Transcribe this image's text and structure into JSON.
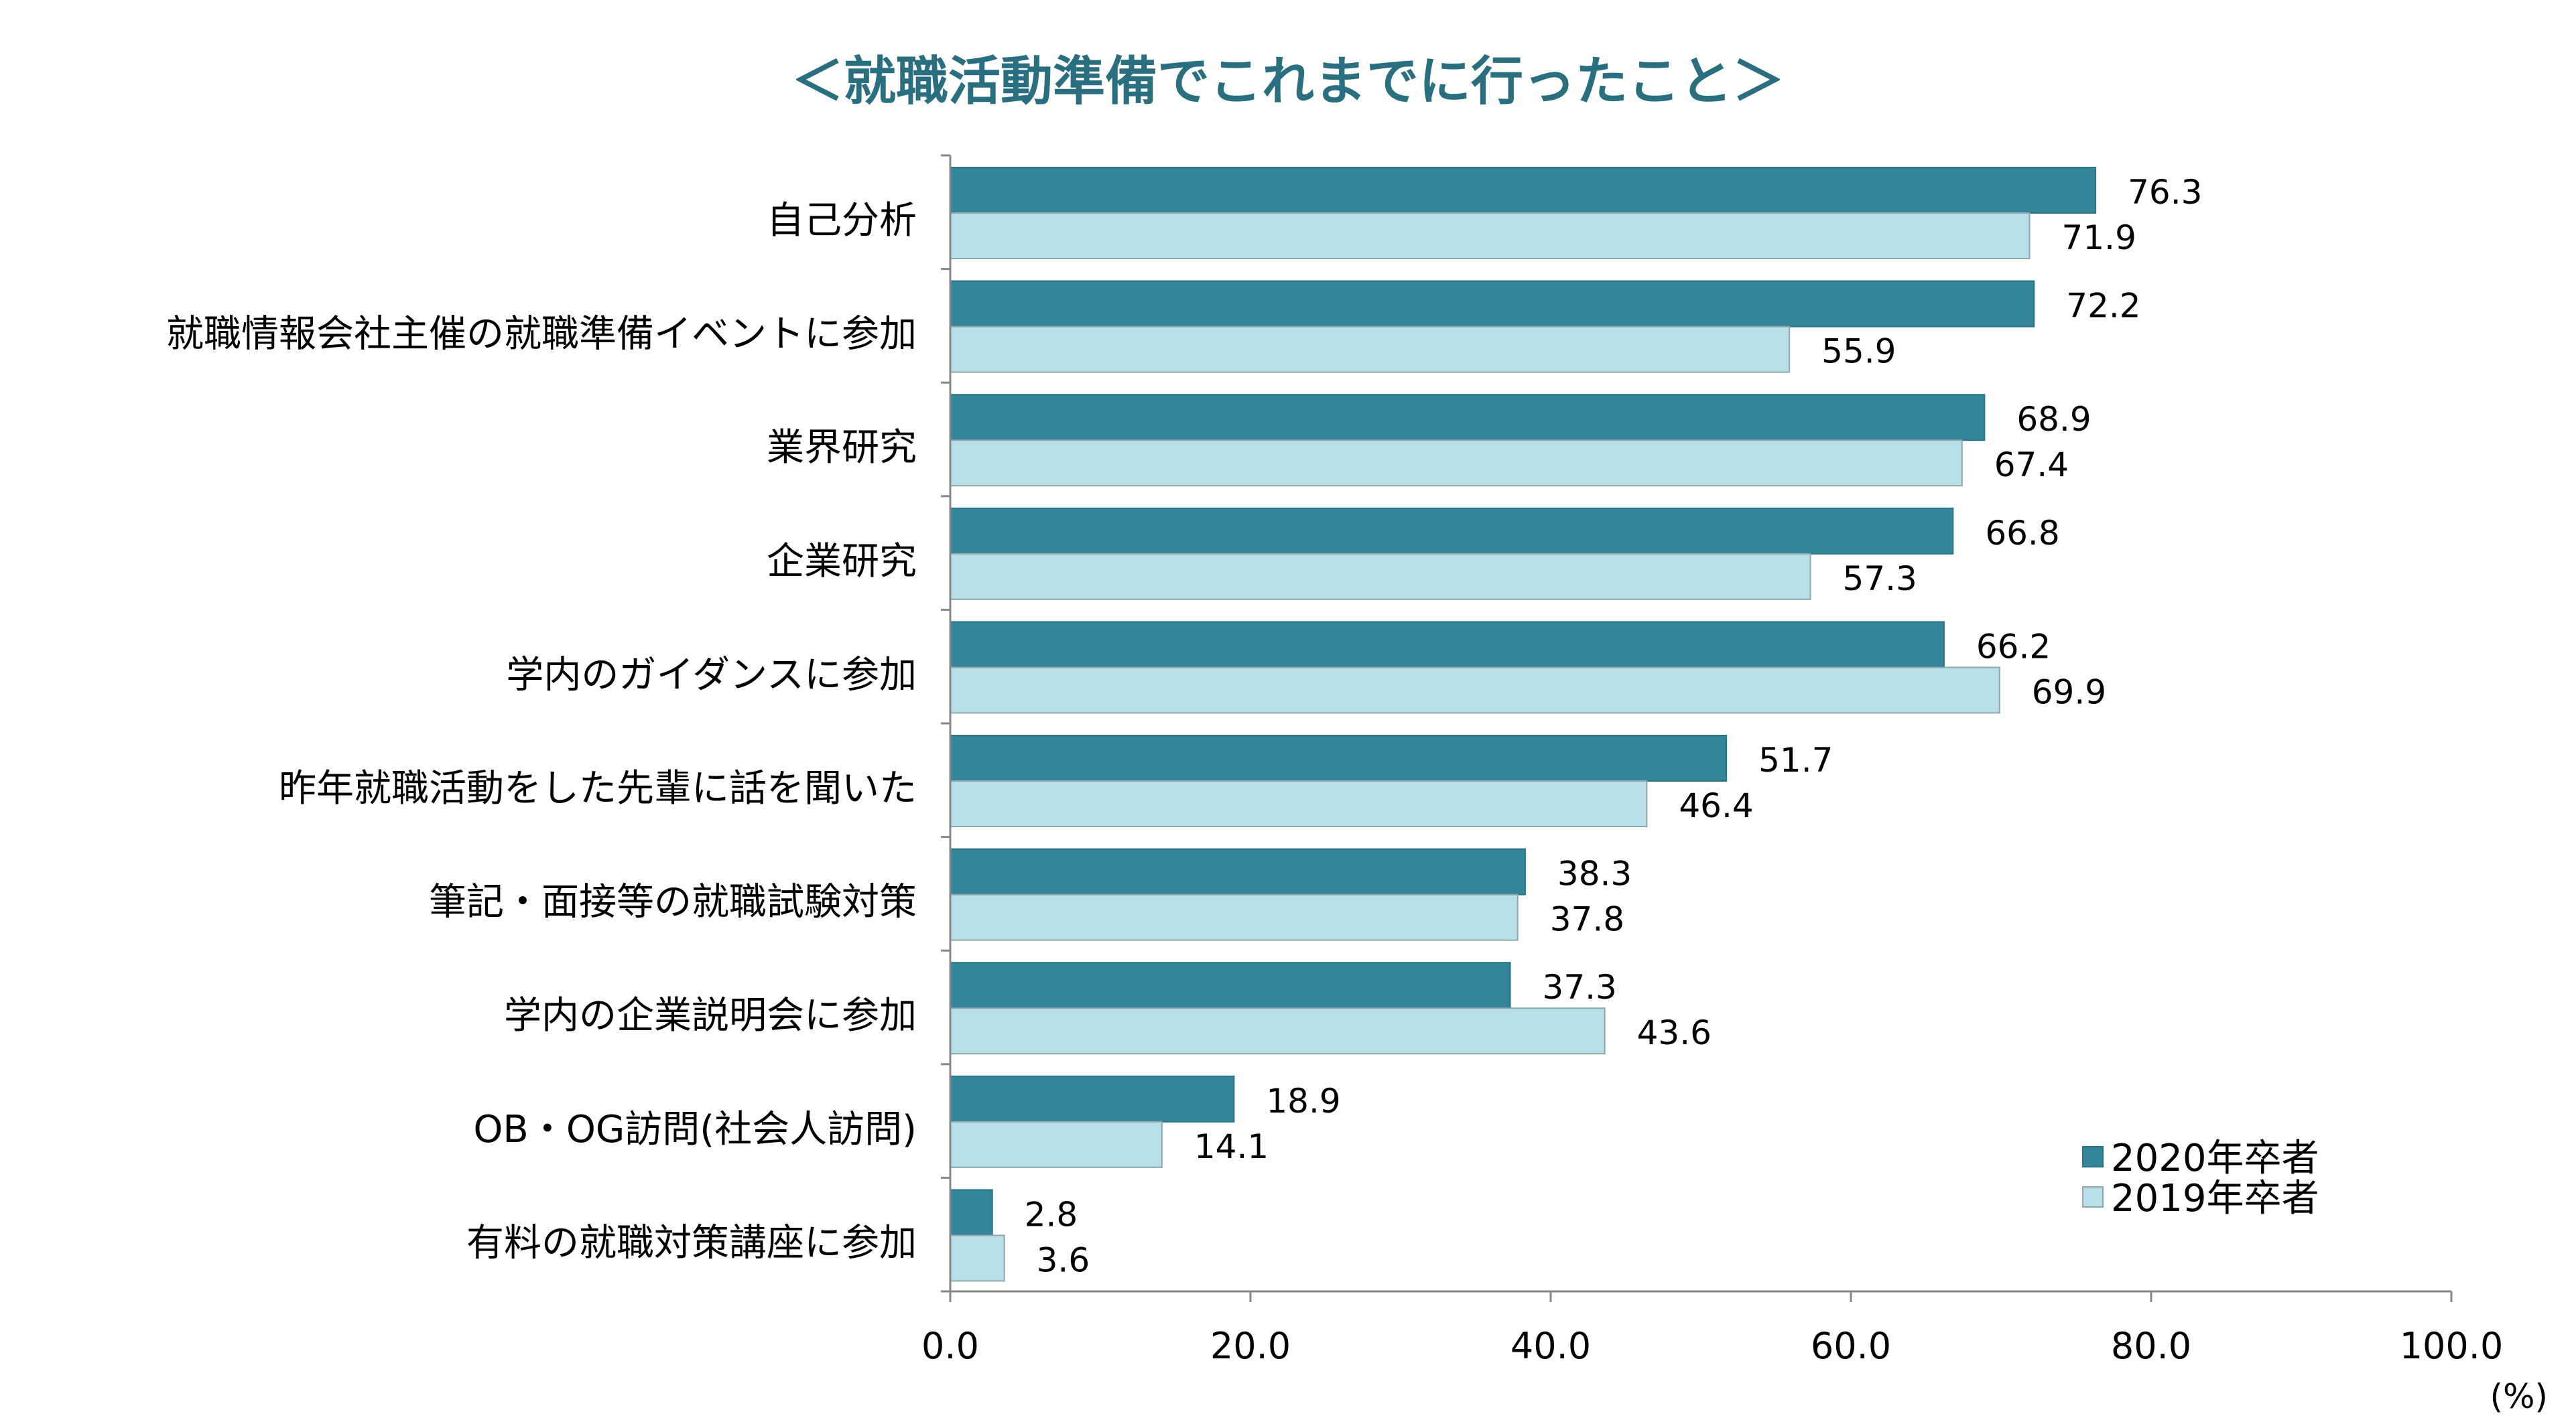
{
  "chart_data": {
    "type": "bar",
    "orientation": "horizontal",
    "title": "＜就職活動準備でこれまでに行ったこと＞",
    "categories": [
      "自己分析",
      "就職情報会社主催の就職準備イベントに参加",
      "業界研究",
      "企業研究",
      "学内のガイダンスに参加",
      "昨年就職活動をした先輩に話を聞いた",
      "筆記・面接等の就職試験対策",
      "学内の企業説明会に参加",
      "OB・OG訪問(社会人訪問)",
      "有料の就職対策講座に参加"
    ],
    "series": [
      {
        "name": "2020年卒者",
        "color": "#338599",
        "values": [
          76.3,
          72.2,
          68.9,
          66.8,
          66.2,
          51.7,
          38.3,
          37.3,
          18.9,
          2.8
        ],
        "labels": [
          "76.3",
          "72.2",
          "68.9",
          "66.8",
          "66.2",
          "51.7",
          "38.3",
          "37.3",
          "18.9",
          "2.8"
        ]
      },
      {
        "name": "2019年卒者",
        "color": "#b8dfe8",
        "values": [
          71.9,
          55.9,
          67.4,
          57.3,
          69.9,
          46.4,
          37.8,
          43.6,
          14.1,
          3.6
        ],
        "labels": [
          "71.9",
          "55.9",
          "67.4",
          "57.3",
          "69.9",
          "46.4",
          "37.8",
          "43.6",
          "14.1",
          "3.6"
        ]
      }
    ],
    "xlim": [
      0,
      100
    ],
    "xticks": [
      0,
      20,
      40,
      60,
      80,
      100
    ],
    "xtick_labels": [
      "0.0",
      "20.0",
      "40.0",
      "60.0",
      "80.0",
      "100.0"
    ],
    "xunit": "(%)",
    "legend_position": "bottom-right",
    "grid": false
  }
}
